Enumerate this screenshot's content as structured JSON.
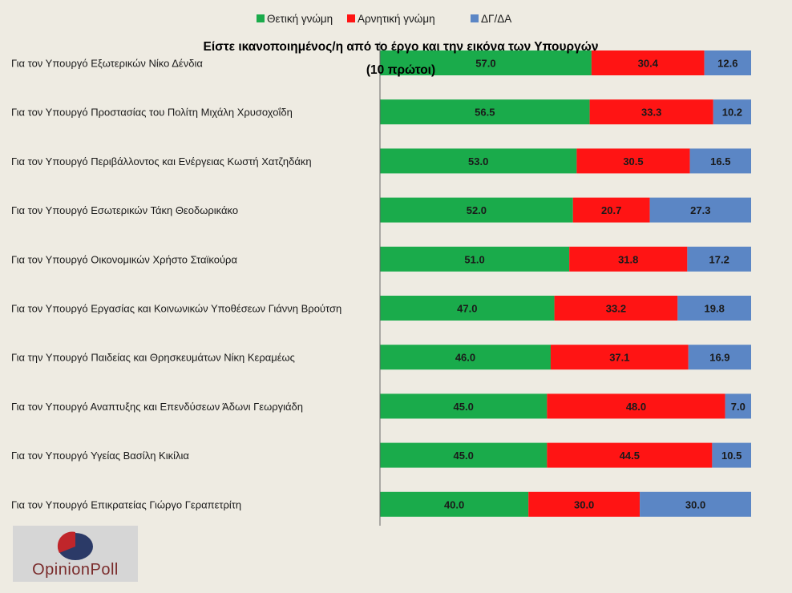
{
  "chart_data": {
    "type": "bar",
    "orientation": "horizontal",
    "stacked": true,
    "title_line1": "Είστε ικανοποιημένος/η από το έργο και την εικόνα των Υπουργών",
    "title_line2": "(10 πρώτοι)",
    "categories": [
      "Για τον Υπουργό Εξωτερικών Νίκο Δένδια",
      "Για τον Υπουργό Προστασίας του Πολίτη Μιχάλη Χρυσοχοΐδη",
      "Για τον Υπουργό Περιβάλλοντος και Ενέργειας Κωστή Χατζηδάκη",
      "Για τον Υπουργό Εσωτερικών Τάκη Θεοδωρικάκο",
      "Για τον Υπουργό Οικονομικών Χρήστο Σταϊκούρα",
      "Για τον Υπουργό Εργασίας και Κοινωνικών Υποθέσεων Γιάννη Βρούτση",
      "Για την Υπουργό Παιδείας και Θρησκευμάτων Νίκη Κεραμέως",
      "Για τον Υπουργό Αναπτυξης και Επενδύσεων Άδωνι Γεωργιάδη",
      "Για τον Υπουργό Υγείας Βασίλη Κικίλια",
      "Για τον Υπουργό Επικρατείας Γιώργο Γεραπετρίτη"
    ],
    "series": [
      {
        "name": "Θετική γνώμη",
        "color": "#1aab4b",
        "values": [
          57.0,
          56.5,
          53.0,
          52.0,
          51.0,
          47.0,
          46.0,
          45.0,
          45.0,
          40.0
        ]
      },
      {
        "name": "Αρνητική γνώμη",
        "color": "#ff1414",
        "values": [
          30.4,
          33.3,
          30.5,
          20.7,
          31.8,
          33.2,
          37.1,
          48.0,
          44.5,
          30.0
        ]
      },
      {
        "name": "ΔΓ/ΔΑ",
        "color": "#5b86c5",
        "values": [
          12.6,
          10.2,
          16.5,
          27.3,
          17.2,
          19.8,
          16.9,
          7.0,
          10.5,
          30.0
        ]
      }
    ],
    "xlim": [
      0,
      100
    ],
    "value_format_decimals": 1,
    "legend_position": "top",
    "grid": false
  },
  "logo": {
    "text": "OpinionPoll",
    "colors": {
      "red": "#c0262b",
      "navy": "#2b3a67"
    }
  }
}
